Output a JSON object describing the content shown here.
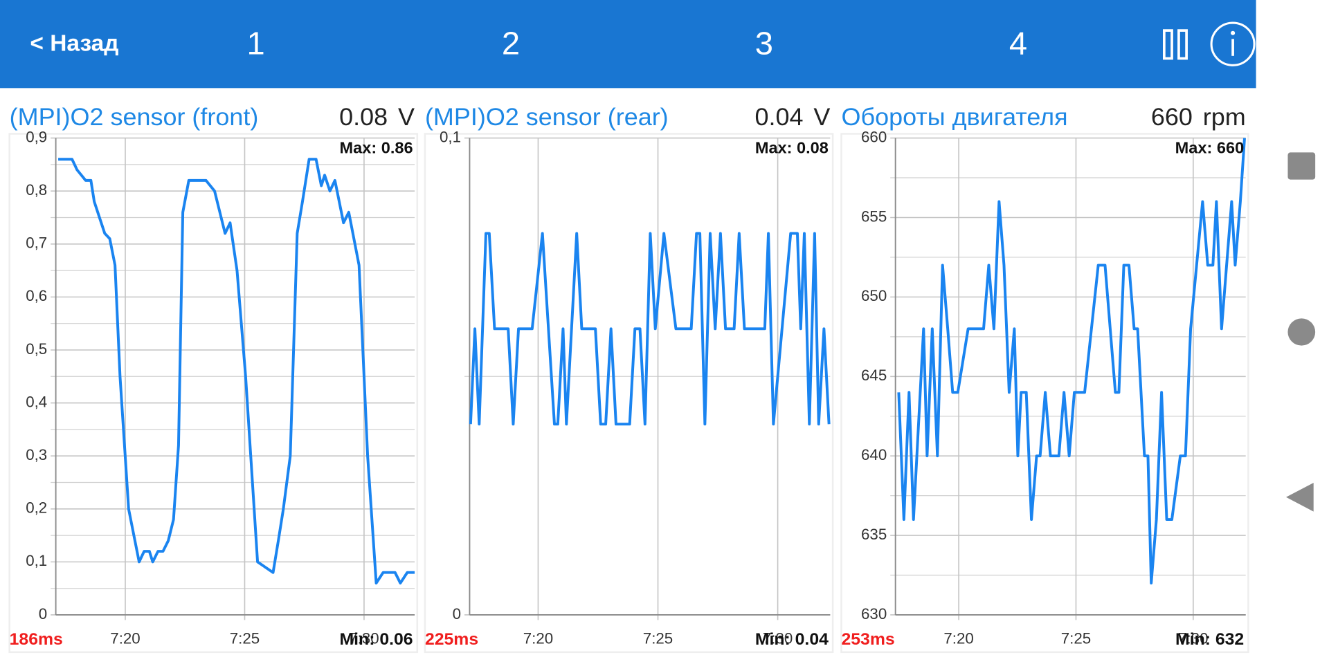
{
  "header": {
    "back": "< Назад",
    "tabs": [
      "1",
      "2",
      "3",
      "4"
    ]
  },
  "chart_data": [
    {
      "type": "line",
      "title": "(MPI)O2 sensor (front)",
      "value": "0.08",
      "unit": "V",
      "latency": "186ms",
      "max_label": "Max: 0.86",
      "min_label": "Min: 0.06",
      "color": "#1a84f0",
      "grid": true,
      "x": [
        437.19,
        437.77,
        437.98,
        438.16,
        438.34,
        438.56,
        438.7,
        438.92,
        439.14,
        439.35,
        439.57,
        439.78,
        440.14,
        440.58,
        440.79,
        441.01,
        441.15,
        441.37,
        441.58,
        441.8,
        442.02,
        442.23,
        442.41,
        442.66,
        443.38,
        443.74,
        444.18,
        444.39,
        444.68,
        445.04,
        445.54,
        446.19,
        446.41,
        446.62,
        446.91,
        447.2,
        447.42,
        447.7,
        447.99,
        448.21,
        448.35,
        448.57,
        448.78,
        449.14,
        449.36,
        449.79,
        450.15,
        450.51,
        450.8,
        451.3,
        451.52,
        451.81,
        452.12
      ],
      "values": [
        0.86,
        0.86,
        0.84,
        0.83,
        0.82,
        0.82,
        0.78,
        0.75,
        0.72,
        0.71,
        0.66,
        0.45,
        0.2,
        0.1,
        0.12,
        0.12,
        0.1,
        0.12,
        0.12,
        0.14,
        0.18,
        0.32,
        0.76,
        0.82,
        0.82,
        0.8,
        0.72,
        0.74,
        0.65,
        0.45,
        0.1,
        0.08,
        0.14,
        0.2,
        0.3,
        0.72,
        0.78,
        0.86,
        0.86,
        0.81,
        0.83,
        0.8,
        0.82,
        0.74,
        0.76,
        0.66,
        0.3,
        0.06,
        0.08,
        0.08,
        0.06,
        0.08,
        0.08
      ],
      "xlim": [
        437.09,
        452.12
      ],
      "ylim": [
        0,
        0.9
      ],
      "xticks": [
        {
          "value": 440,
          "label": "7:20"
        },
        {
          "value": 445,
          "label": "7:25"
        },
        {
          "value": 450,
          "label": "7:30"
        }
      ],
      "yticks": [
        0,
        {
          "value": 0.1,
          "label": "0,1"
        },
        {
          "value": 0.2,
          "label": "0,2"
        },
        {
          "value": 0.3,
          "label": "0,3"
        },
        {
          "value": 0.4,
          "label": "0,4"
        },
        {
          "value": 0.5,
          "label": "0,5"
        },
        {
          "value": 0.6,
          "label": "0,6"
        },
        {
          "value": 0.7,
          "label": "0,7"
        },
        {
          "value": 0.8,
          "label": "0,8"
        },
        {
          "value": 0.9,
          "label": "0,9"
        }
      ],
      "minor_yticks": [
        0.05,
        0.15,
        0.25,
        0.35,
        0.45,
        0.55,
        0.65,
        0.75,
        0.85
      ]
    },
    {
      "type": "line",
      "title": "(MPI)O2 sensor (rear)",
      "value": "0.04",
      "unit": "V",
      "latency": "225ms",
      "max_label": "Max: 0.08",
      "min_label": "Min: 0.04",
      "color": "#1a84f0",
      "grid": true,
      "x": [
        437.18,
        437.36,
        437.54,
        437.82,
        437.96,
        438.18,
        438.75,
        438.96,
        439.18,
        439.75,
        440.18,
        440.68,
        440.82,
        441.04,
        441.18,
        441.61,
        441.82,
        442.39,
        442.61,
        442.82,
        443.04,
        443.25,
        443.82,
        444.04,
        444.25,
        444.46,
        444.68,
        444.89,
        445.25,
        445.75,
        446.39,
        446.61,
        446.75,
        446.96,
        447.18,
        447.39,
        447.61,
        447.82,
        448.18,
        448.39,
        448.61,
        449.46,
        449.61,
        449.82,
        450.54,
        450.82,
        450.96,
        451.11,
        451.32,
        451.54,
        451.71,
        451.93,
        452.14
      ],
      "values": [
        0.04,
        0.06,
        0.04,
        0.08,
        0.08,
        0.06,
        0.06,
        0.04,
        0.06,
        0.06,
        0.08,
        0.04,
        0.04,
        0.06,
        0.04,
        0.08,
        0.06,
        0.06,
        0.04,
        0.04,
        0.06,
        0.04,
        0.04,
        0.06,
        0.06,
        0.04,
        0.08,
        0.06,
        0.08,
        0.06,
        0.06,
        0.08,
        0.08,
        0.04,
        0.08,
        0.06,
        0.08,
        0.06,
        0.06,
        0.08,
        0.06,
        0.06,
        0.08,
        0.04,
        0.08,
        0.08,
        0.06,
        0.08,
        0.04,
        0.08,
        0.04,
        0.06,
        0.04
      ],
      "xlim": [
        437.14,
        452.19
      ],
      "ylim": [
        0,
        0.1
      ],
      "xticks": [
        {
          "value": 440,
          "label": "7:20"
        },
        {
          "value": 445,
          "label": "7:25"
        },
        {
          "value": 450,
          "label": "7:30"
        }
      ],
      "yticks": [
        0,
        {
          "value": 0.1,
          "label": "0,1"
        }
      ],
      "minor_yticks": [
        0.05
      ]
    },
    {
      "type": "line",
      "title": "Обороты двигателя",
      "value": "660",
      "unit": "rpm",
      "latency": "253ms",
      "max_label": "Max: 660",
      "min_label": "Min: 632",
      "color": "#1a84f0",
      "grid": true,
      "x": [
        437.44,
        437.66,
        437.88,
        438.07,
        438.5,
        438.65,
        438.87,
        439.09,
        439.31,
        439.53,
        439.74,
        439.96,
        440.4,
        441.06,
        441.28,
        441.5,
        441.72,
        441.93,
        442.15,
        442.37,
        442.52,
        442.66,
        442.88,
        443.1,
        443.32,
        443.47,
        443.69,
        443.91,
        444.27,
        444.49,
        444.71,
        444.93,
        445.37,
        445.95,
        446.24,
        446.46,
        446.68,
        446.83,
        447.04,
        447.26,
        447.48,
        447.63,
        447.92,
        448.07,
        448.21,
        448.43,
        448.65,
        448.87,
        449.09,
        449.45,
        449.67,
        449.89,
        450.4,
        450.62,
        450.84,
        450.99,
        451.21,
        451.64,
        451.79,
        452.01,
        452.19
      ],
      "values": [
        644,
        636,
        644,
        636,
        648,
        640,
        648,
        640,
        652,
        648,
        644,
        644,
        648,
        648,
        652,
        648,
        656,
        652,
        644,
        648,
        640,
        644,
        644,
        636,
        640,
        640,
        644,
        640,
        640,
        644,
        640,
        644,
        644,
        652,
        652,
        648,
        644,
        644,
        652,
        652,
        648,
        648,
        640,
        640,
        632,
        636,
        644,
        636,
        636,
        640,
        640,
        648,
        656,
        652,
        652,
        656,
        648,
        656,
        652,
        656,
        660
      ],
      "xlim": [
        437.3,
        452.24
      ],
      "ylim": [
        630,
        660
      ],
      "xticks": [
        {
          "value": 440,
          "label": "7:20"
        },
        {
          "value": 445,
          "label": "7:25"
        },
        {
          "value": 450,
          "label": "7:30"
        }
      ],
      "yticks": [
        630,
        635,
        640,
        645,
        650,
        655,
        660
      ],
      "minor_yticks": [
        632.5,
        637.5,
        642.5,
        647.5,
        652.5,
        657.5
      ]
    }
  ]
}
